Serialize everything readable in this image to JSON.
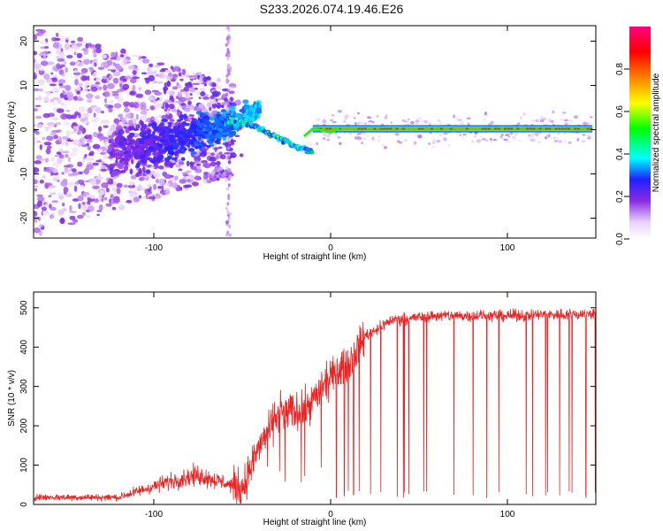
{
  "title": "S233.2026.074.19.46.E26",
  "chart_data": [
    {
      "type": "heatmap",
      "xlabel": "Height of straight line (km)",
      "ylabel": "Frequency (Hz)",
      "xlim": [
        -168,
        150
      ],
      "ylim": [
        -24.5,
        23.5
      ],
      "xticks": [
        -100,
        0,
        100
      ],
      "yticks": [
        -20,
        -10,
        0,
        10,
        20
      ],
      "colorbar": {
        "label": "Normalized spectral amplitude",
        "range": [
          0,
          1
        ],
        "ticks": [
          0.0,
          0.2,
          0.4,
          0.6,
          0.8
        ],
        "colors": [
          "#ffffff",
          "#d9b8ff",
          "#8a2be2",
          "#2020ff",
          "#00ffff",
          "#00ff00",
          "#ffff00",
          "#ff8000",
          "#ff0000",
          "#ff0080"
        ]
      },
      "features": {
        "carrier_line": {
          "x_from": -10,
          "x_to": 148,
          "frequency": 0.2
        },
        "noise_cloud": {
          "x_from": -168,
          "x_to": -55,
          "amplitude": "low"
        },
        "transition_region": {
          "x_from": -55,
          "x_to": -10
        }
      }
    },
    {
      "type": "line",
      "xlabel": "Height of straight line (km)",
      "ylabel": "SNR (10 * v/v)",
      "xlim": [
        -168,
        150
      ],
      "ylim": [
        0,
        540
      ],
      "xticks": [
        -100,
        0,
        100
      ],
      "yticks": [
        0,
        100,
        200,
        300,
        400,
        500
      ],
      "color": "#ee2222",
      "profile": [
        {
          "x": -168,
          "snr": 18
        },
        {
          "x": -120,
          "snr": 18
        },
        {
          "x": -90,
          "snr": 60
        },
        {
          "x": -75,
          "snr": 75
        },
        {
          "x": -60,
          "snr": 55
        },
        {
          "x": -50,
          "snr": 40
        },
        {
          "x": -40,
          "snr": 150
        },
        {
          "x": -30,
          "snr": 230
        },
        {
          "x": -15,
          "snr": 240
        },
        {
          "x": 0,
          "snr": 320
        },
        {
          "x": 10,
          "snr": 360
        },
        {
          "x": 20,
          "snr": 430
        },
        {
          "x": 35,
          "snr": 470
        },
        {
          "x": 60,
          "snr": 480
        },
        {
          "x": 100,
          "snr": 480
        },
        {
          "x": 150,
          "snr": 485
        }
      ]
    }
  ]
}
